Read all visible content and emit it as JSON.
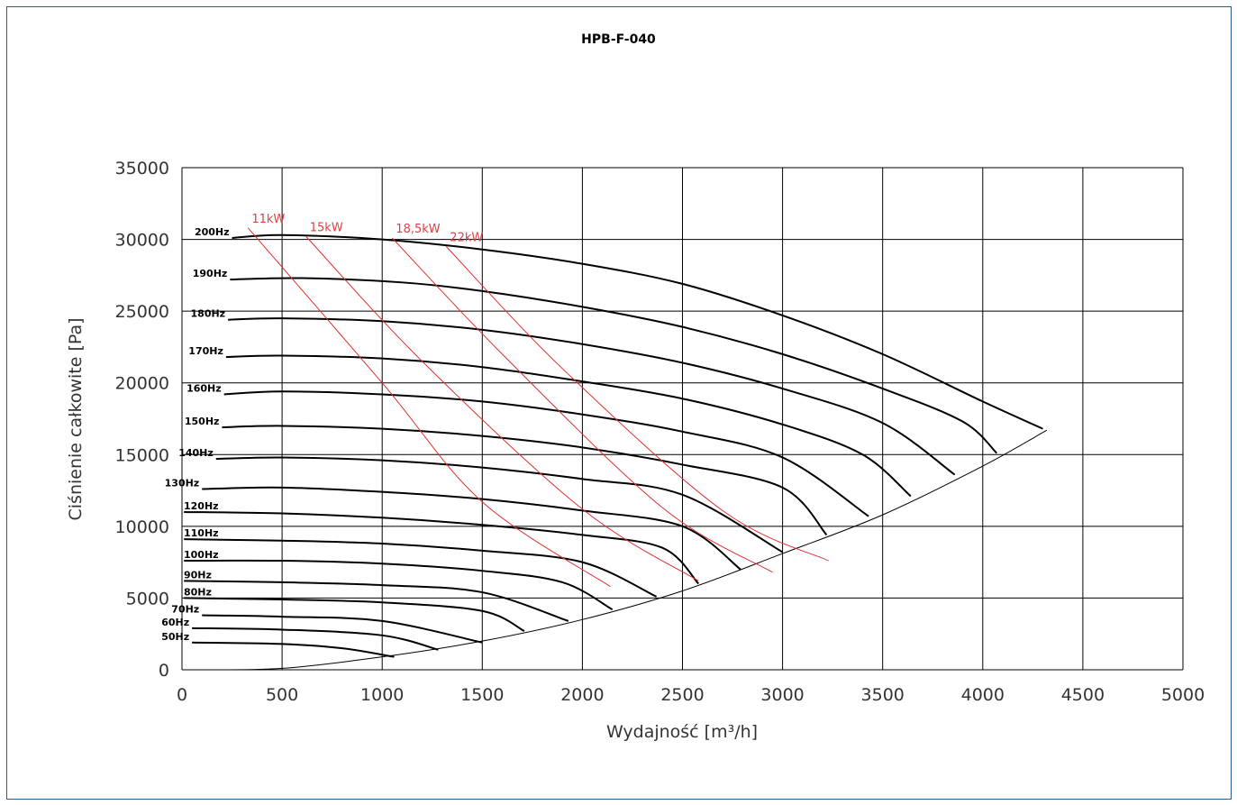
{
  "chart_data": {
    "type": "line",
    "title": "HPB-F-040",
    "xlabel": "Wydajność [m³/h]",
    "ylabel": "Ciśnienie całkowite [Pa]",
    "xlim": [
      0,
      5000
    ],
    "ylim": [
      0,
      35000
    ],
    "x_ticks": [
      0,
      500,
      1000,
      1500,
      2000,
      2500,
      3000,
      3500,
      4000,
      4500,
      5000
    ],
    "y_ticks": [
      0,
      5000,
      10000,
      15000,
      20000,
      25000,
      30000,
      35000
    ],
    "grid": true,
    "fan_curves": [
      {
        "name": "200Hz",
        "points": [
          [
            250,
            30100
          ],
          [
            500,
            30300
          ],
          [
            1000,
            30000
          ],
          [
            1500,
            29300
          ],
          [
            2000,
            28300
          ],
          [
            2500,
            26900
          ],
          [
            3000,
            24700
          ],
          [
            3500,
            22000
          ],
          [
            4000,
            18700
          ],
          [
            4300,
            16800
          ]
        ]
      },
      {
        "name": "190Hz",
        "points": [
          [
            240,
            27200
          ],
          [
            600,
            27300
          ],
          [
            1100,
            27000
          ],
          [
            1500,
            26400
          ],
          [
            2000,
            25300
          ],
          [
            2500,
            23900
          ],
          [
            3000,
            22000
          ],
          [
            3500,
            19600
          ],
          [
            3900,
            17300
          ],
          [
            4070,
            15100
          ]
        ]
      },
      {
        "name": "180Hz",
        "points": [
          [
            230,
            24400
          ],
          [
            500,
            24500
          ],
          [
            1000,
            24300
          ],
          [
            1500,
            23700
          ],
          [
            2000,
            22700
          ],
          [
            2500,
            21400
          ],
          [
            3000,
            19600
          ],
          [
            3500,
            17200
          ],
          [
            3860,
            13600
          ]
        ]
      },
      {
        "name": "170Hz",
        "points": [
          [
            220,
            21800
          ],
          [
            500,
            21900
          ],
          [
            1000,
            21700
          ],
          [
            1500,
            21100
          ],
          [
            2000,
            20100
          ],
          [
            2500,
            18900
          ],
          [
            3000,
            17100
          ],
          [
            3400,
            15000
          ],
          [
            3640,
            12100
          ]
        ]
      },
      {
        "name": "160Hz",
        "points": [
          [
            210,
            19200
          ],
          [
            500,
            19400
          ],
          [
            1000,
            19200
          ],
          [
            1500,
            18700
          ],
          [
            2000,
            17800
          ],
          [
            2500,
            16600
          ],
          [
            3000,
            14800
          ],
          [
            3430,
            10700
          ]
        ]
      },
      {
        "name": "150Hz",
        "points": [
          [
            200,
            16900
          ],
          [
            500,
            17000
          ],
          [
            1000,
            16800
          ],
          [
            1500,
            16300
          ],
          [
            2000,
            15500
          ],
          [
            2500,
            14300
          ],
          [
            3000,
            12700
          ],
          [
            3220,
            9400
          ]
        ]
      },
      {
        "name": "140Hz",
        "points": [
          [
            170,
            14700
          ],
          [
            500,
            14800
          ],
          [
            1000,
            14600
          ],
          [
            1500,
            14100
          ],
          [
            2000,
            13300
          ],
          [
            2500,
            12200
          ],
          [
            3000,
            8200
          ]
        ]
      },
      {
        "name": "130Hz",
        "points": [
          [
            100,
            12600
          ],
          [
            500,
            12700
          ],
          [
            1000,
            12400
          ],
          [
            1500,
            11900
          ],
          [
            2000,
            11100
          ],
          [
            2500,
            10000
          ],
          [
            2790,
            7000
          ]
        ]
      },
      {
        "name": "120Hz",
        "points": [
          [
            10,
            11000
          ],
          [
            500,
            10900
          ],
          [
            1000,
            10600
          ],
          [
            1500,
            10100
          ],
          [
            2000,
            9400
          ],
          [
            2400,
            8500
          ],
          [
            2580,
            6000
          ]
        ]
      },
      {
        "name": "110Hz",
        "points": [
          [
            10,
            9100
          ],
          [
            500,
            9000
          ],
          [
            1000,
            8800
          ],
          [
            1500,
            8300
          ],
          [
            2000,
            7500
          ],
          [
            2370,
            5100
          ]
        ]
      },
      {
        "name": "100Hz",
        "points": [
          [
            10,
            7600
          ],
          [
            500,
            7600
          ],
          [
            1000,
            7400
          ],
          [
            1500,
            6900
          ],
          [
            1900,
            6100
          ],
          [
            2150,
            4200
          ]
        ]
      },
      {
        "name": "90Hz",
        "points": [
          [
            10,
            6200
          ],
          [
            500,
            6100
          ],
          [
            1000,
            5900
          ],
          [
            1500,
            5400
          ],
          [
            1930,
            3400
          ]
        ]
      },
      {
        "name": "80Hz",
        "points": [
          [
            10,
            5000
          ],
          [
            500,
            4900
          ],
          [
            1000,
            4700
          ],
          [
            1500,
            4100
          ],
          [
            1710,
            2700
          ]
        ]
      },
      {
        "name": "70Hz",
        "points": [
          [
            100,
            3800
          ],
          [
            500,
            3700
          ],
          [
            1000,
            3400
          ],
          [
            1500,
            1900
          ]
        ]
      },
      {
        "name": "60Hz",
        "points": [
          [
            50,
            2900
          ],
          [
            500,
            2800
          ],
          [
            1000,
            2400
          ],
          [
            1280,
            1400
          ]
        ]
      },
      {
        "name": "50Hz",
        "points": [
          [
            50,
            1900
          ],
          [
            500,
            1800
          ],
          [
            800,
            1500
          ],
          [
            1060,
            900
          ]
        ]
      }
    ],
    "system_curve": {
      "points": [
        [
          100,
          0
        ],
        [
          500,
          100
        ],
        [
          1000,
          900
        ],
        [
          1500,
          2000
        ],
        [
          2000,
          3500
        ],
        [
          2500,
          5500
        ],
        [
          3000,
          8100
        ],
        [
          3500,
          10800
        ],
        [
          4000,
          14200
        ],
        [
          4320,
          16700
        ]
      ]
    },
    "power_lines": [
      {
        "name": "11kW",
        "points": [
          [
            330,
            30800
          ],
          [
            1000,
            20000
          ],
          [
            1500,
            11700
          ],
          [
            2140,
            5800
          ]
        ]
      },
      {
        "name": "15kW",
        "points": [
          [
            620,
            30200
          ],
          [
            1200,
            21500
          ],
          [
            2000,
            11200
          ],
          [
            2580,
            6200
          ]
        ]
      },
      {
        "name": "18,5kW",
        "points": [
          [
            1050,
            30100
          ],
          [
            1600,
            22000
          ],
          [
            2400,
            11300
          ],
          [
            2950,
            6800
          ]
        ]
      },
      {
        "name": "22kW",
        "points": [
          [
            1320,
            29500
          ],
          [
            1900,
            21000
          ],
          [
            2700,
            11100
          ],
          [
            3230,
            7600
          ]
        ]
      }
    ]
  }
}
